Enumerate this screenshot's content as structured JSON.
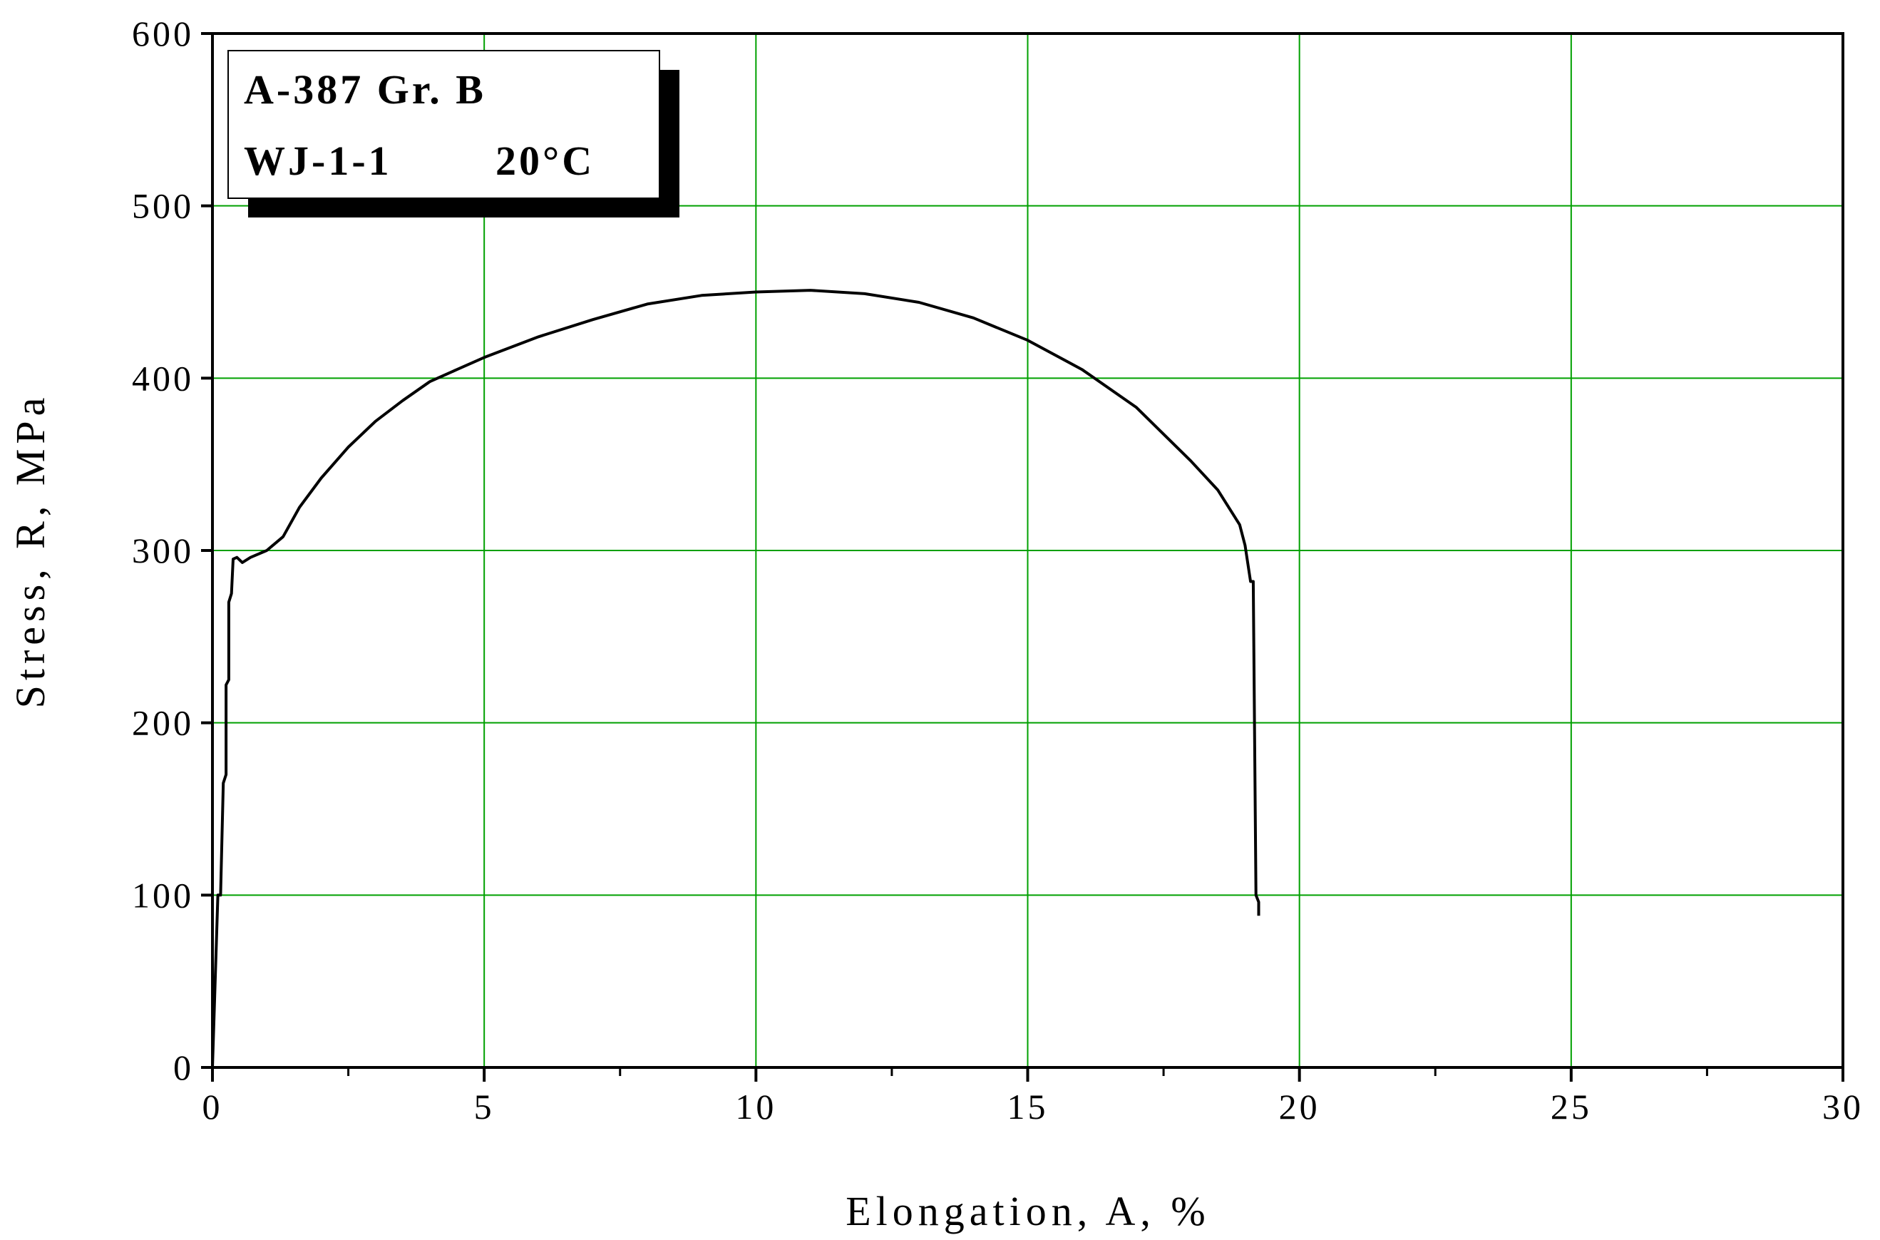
{
  "chart_data": {
    "type": "line",
    "xlabel": "Elongation,  A, %",
    "ylabel": "Stress,  R, MPa",
    "annotations": [
      "A-387 Gr. B",
      "WJ-1-1",
      "20°C"
    ],
    "x": [
      0,
      0.05,
      0.1,
      0.15,
      0.2,
      0.25,
      0.25,
      0.3,
      0.3,
      0.35,
      0.38,
      0.45,
      0.55,
      0.7,
      1.0,
      1.3,
      1.6,
      2.0,
      2.5,
      3.0,
      3.5,
      4.0,
      4.5,
      5.0,
      6.0,
      7.0,
      8.0,
      9.0,
      10.0,
      11.0,
      12.0,
      13.0,
      14.0,
      15.0,
      16.0,
      17.0,
      18.0,
      18.5,
      18.9,
      19.0,
      19.1,
      19.15,
      19.2,
      19.25,
      19.25
    ],
    "values": [
      0,
      50,
      100,
      100,
      165,
      170,
      222,
      225,
      270,
      275,
      295,
      296,
      293,
      296,
      300,
      308,
      325,
      342,
      360,
      375,
      387,
      398,
      405,
      412,
      424,
      434,
      443,
      448,
      450,
      451,
      449,
      444,
      435,
      422,
      405,
      383,
      352,
      335,
      315,
      303,
      282,
      282,
      100,
      96,
      88
    ],
    "color": "#000000",
    "xlim": [
      0,
      30
    ],
    "xticks": [
      0,
      5,
      10,
      15,
      20,
      25,
      30
    ],
    "xminorticks": [
      2.5,
      7.5,
      12.5,
      17.5,
      22.5,
      27.5
    ],
    "ylim": [
      0,
      600
    ],
    "yticks": [
      0,
      100,
      200,
      300,
      400,
      500,
      600
    ],
    "grid": true,
    "grid_color": "#00a000"
  }
}
